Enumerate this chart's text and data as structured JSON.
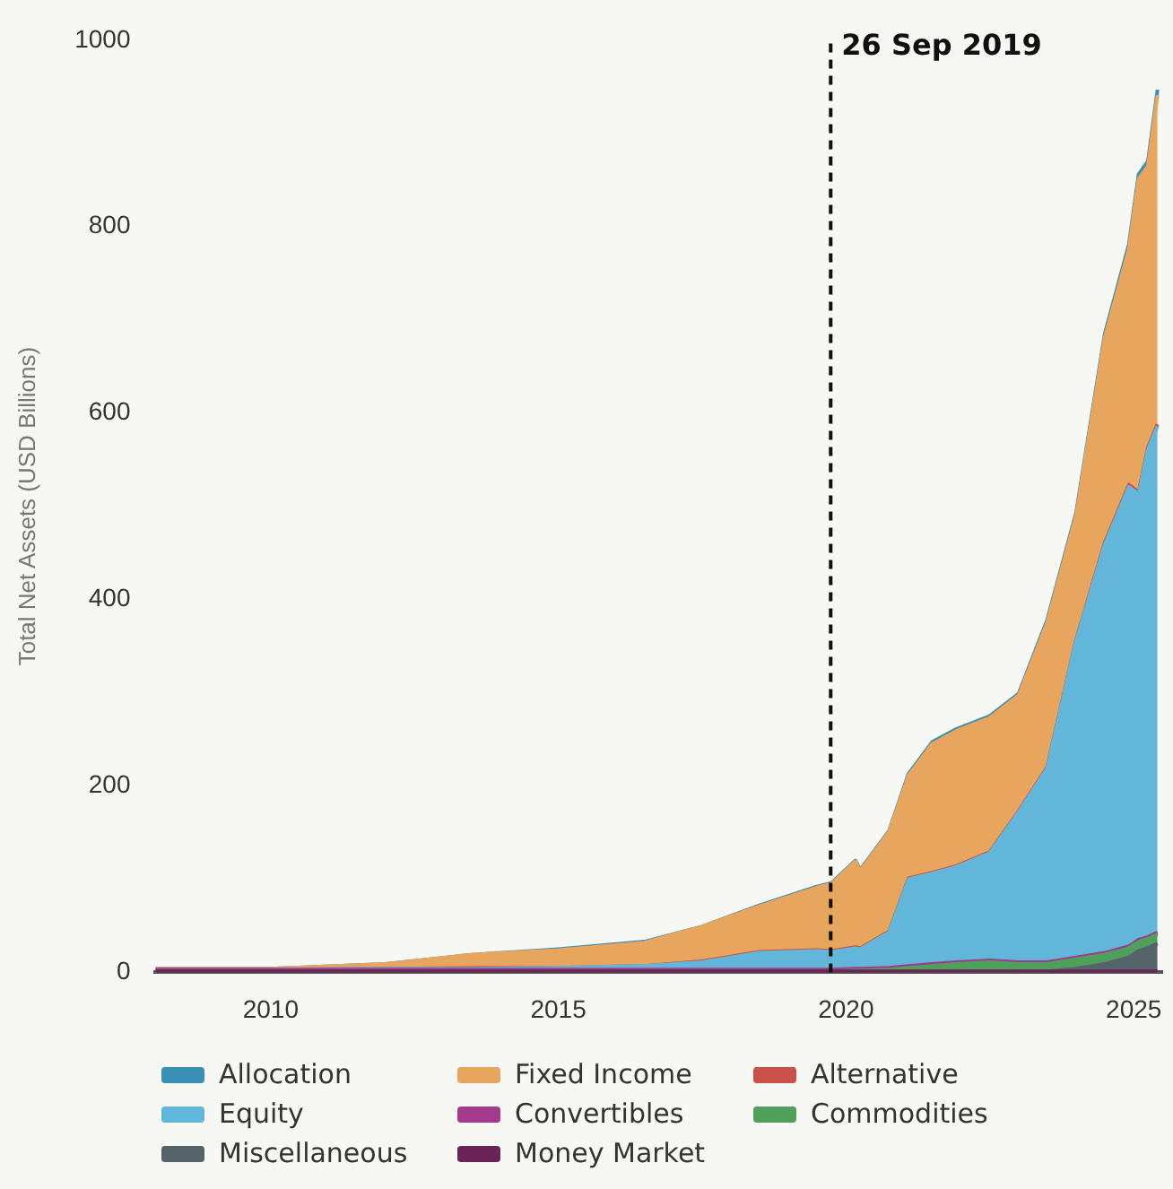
{
  "chart_data": {
    "type": "area",
    "stacked": true,
    "ylabel": "Total Net Assets (USD Billions)",
    "x": [
      "2008-01",
      "2010-01",
      "2012-01",
      "2013-07",
      "2015-01",
      "2016-07",
      "2017-07",
      "2018-07",
      "2019-07",
      "2019-10",
      "2020-03",
      "2020-04",
      "2020-10",
      "2021-02",
      "2021-07",
      "2021-12",
      "2022-07",
      "2023-01",
      "2023-07",
      "2024-01",
      "2024-07",
      "2024-12",
      "2025-02",
      "2025-04",
      "2025-06"
    ],
    "series": [
      {
        "name": "Money Market",
        "color": "#6b2456",
        "values": [
          1,
          1,
          1,
          1,
          1,
          1,
          1,
          1,
          1,
          1,
          1,
          1,
          1,
          1,
          1,
          1,
          1,
          1,
          1,
          1,
          1,
          1,
          1,
          1,
          1
        ]
      },
      {
        "name": "Miscellaneous",
        "color": "#56636b",
        "values": [
          0,
          0,
          0,
          0,
          0,
          0,
          0,
          0,
          0,
          0,
          0,
          0,
          0,
          0,
          0,
          0,
          0,
          0,
          0,
          3,
          8,
          15,
          22,
          25,
          30
        ]
      },
      {
        "name": "Commodities",
        "color": "#4ea05a",
        "values": [
          0,
          0,
          0,
          0,
          0,
          0,
          0,
          0,
          0,
          0,
          1,
          1,
          2,
          4,
          6,
          8,
          10,
          8,
          8,
          10,
          10,
          10,
          10,
          10,
          10
        ]
      },
      {
        "name": "Convertibles",
        "color": "#a33a8c",
        "values": [
          2,
          2,
          2,
          2,
          2,
          2,
          2,
          2,
          2,
          2,
          2,
          2,
          2,
          2,
          2,
          2,
          2,
          2,
          2,
          2,
          2,
          2,
          2,
          2,
          2
        ]
      },
      {
        "name": "Equity",
        "color": "#62b6d9",
        "values": [
          0,
          0,
          1,
          1,
          2,
          4,
          8,
          18,
          20,
          19,
          22,
          21,
          38,
          93,
          97,
          102,
          115,
          161,
          208,
          340,
          438,
          493,
          478,
          523,
          543
        ]
      },
      {
        "name": "Alternative",
        "color": "#c9514a",
        "values": [
          0,
          0,
          0,
          1,
          0,
          0,
          1,
          1,
          1,
          1,
          1,
          1,
          1,
          1,
          1,
          1,
          1,
          1,
          1,
          1,
          2,
          2,
          2,
          2,
          2
        ]
      },
      {
        "name": "Fixed Income",
        "color": "#e8a55e",
        "values": [
          1,
          1,
          5,
          14,
          19,
          25,
          37,
          49,
          67,
          72,
          92,
          83,
          107,
          110,
          138,
          145,
          144,
          124,
          155,
          133,
          220,
          253,
          336,
          302,
          353
        ]
      },
      {
        "name": "Allocation",
        "color": "#3a8fb7",
        "values": [
          0,
          0,
          0,
          0,
          1,
          1,
          0,
          1,
          1,
          1,
          1,
          1,
          1,
          2,
          2,
          2,
          2,
          2,
          3,
          3,
          4,
          5,
          5,
          5,
          6
        ]
      }
    ],
    "xlim": [
      "2008-01",
      "2025-07"
    ],
    "xticks": [
      "2010",
      "2015",
      "2020",
      "2025"
    ],
    "ylim": [
      0,
      1000
    ],
    "yticks": [
      0,
      200,
      400,
      600,
      800,
      1000
    ],
    "ref_lines": [
      {
        "axis": "x",
        "value": "2019-09-26",
        "label": "26 Sep 2019",
        "color": "#111111",
        "line_style": "dashed"
      }
    ],
    "legend": "bottom"
  }
}
